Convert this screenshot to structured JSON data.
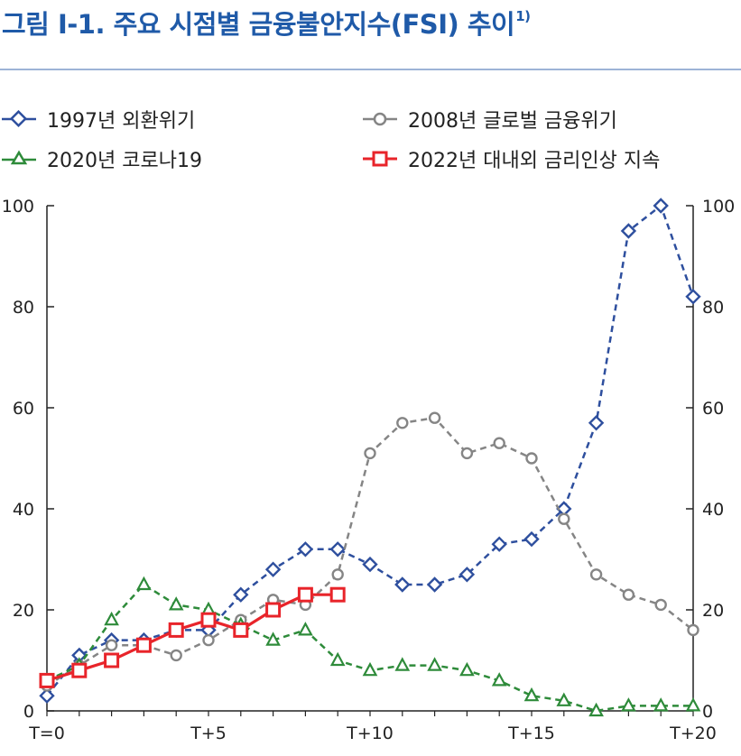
{
  "figure": {
    "title": "그림 Ⅰ-1. 주요 시점별 금융불안지수(FSI) 추이",
    "footnote_mark": "1)"
  },
  "chart_data": {
    "type": "line",
    "title": "주요 시점별 금융불안지수(FSI) 추이",
    "xlabel": "",
    "ylabel": "",
    "ylim": [
      0,
      100
    ],
    "xlim": [
      0,
      20
    ],
    "y_ticks": [
      0,
      20,
      40,
      60,
      80,
      100
    ],
    "x_ticks": [
      {
        "value": 0,
        "label": "T=0"
      },
      {
        "value": 5,
        "label": "T+5"
      },
      {
        "value": 10,
        "label": "T+10"
      },
      {
        "value": 15,
        "label": "T+15"
      },
      {
        "value": 20,
        "label": "T+20"
      }
    ],
    "series": [
      {
        "name": "1997년 외환위기",
        "color": "#2e4f9e",
        "marker": "diamond",
        "dash": true,
        "x": [
          0,
          1,
          2,
          3,
          4,
          5,
          6,
          7,
          8,
          9,
          10,
          11,
          12,
          13,
          14,
          15,
          16,
          17,
          18,
          19,
          20
        ],
        "values": [
          3,
          11,
          14,
          14,
          16,
          16,
          23,
          28,
          32,
          32,
          29,
          25,
          25,
          27,
          33,
          34,
          40,
          57,
          95,
          100,
          82
        ]
      },
      {
        "name": "2008년 글로벌 금융위기",
        "color": "#858585",
        "marker": "circle",
        "dash": true,
        "x": [
          0,
          1,
          2,
          3,
          4,
          5,
          6,
          7,
          8,
          9,
          10,
          11,
          12,
          13,
          14,
          15,
          16,
          17,
          18,
          19,
          20
        ],
        "values": [
          5,
          9,
          13,
          13,
          11,
          14,
          18,
          22,
          21,
          27,
          51,
          57,
          58,
          51,
          53,
          50,
          38,
          27,
          23,
          21,
          16
        ]
      },
      {
        "name": "2020년 코로나19",
        "color": "#2e8b3a",
        "marker": "triangle",
        "dash": true,
        "x": [
          0,
          1,
          2,
          3,
          4,
          5,
          6,
          7,
          8,
          9,
          10,
          11,
          12,
          13,
          14,
          15,
          16,
          17,
          18,
          19,
          20
        ],
        "values": [
          6,
          9,
          18,
          25,
          21,
          20,
          17,
          14,
          16,
          10,
          8,
          9,
          9,
          8,
          6,
          3,
          2,
          0,
          1,
          1,
          1
        ]
      },
      {
        "name": "2022년 대내외 금리인상 지속",
        "color": "#e8242a",
        "marker": "square",
        "dash": false,
        "x": [
          0,
          1,
          2,
          3,
          4,
          5,
          6,
          7,
          8,
          9
        ],
        "values": [
          6,
          8,
          10,
          13,
          16,
          18,
          16,
          20,
          23,
          23
        ]
      }
    ],
    "legend": "top, two columns"
  }
}
